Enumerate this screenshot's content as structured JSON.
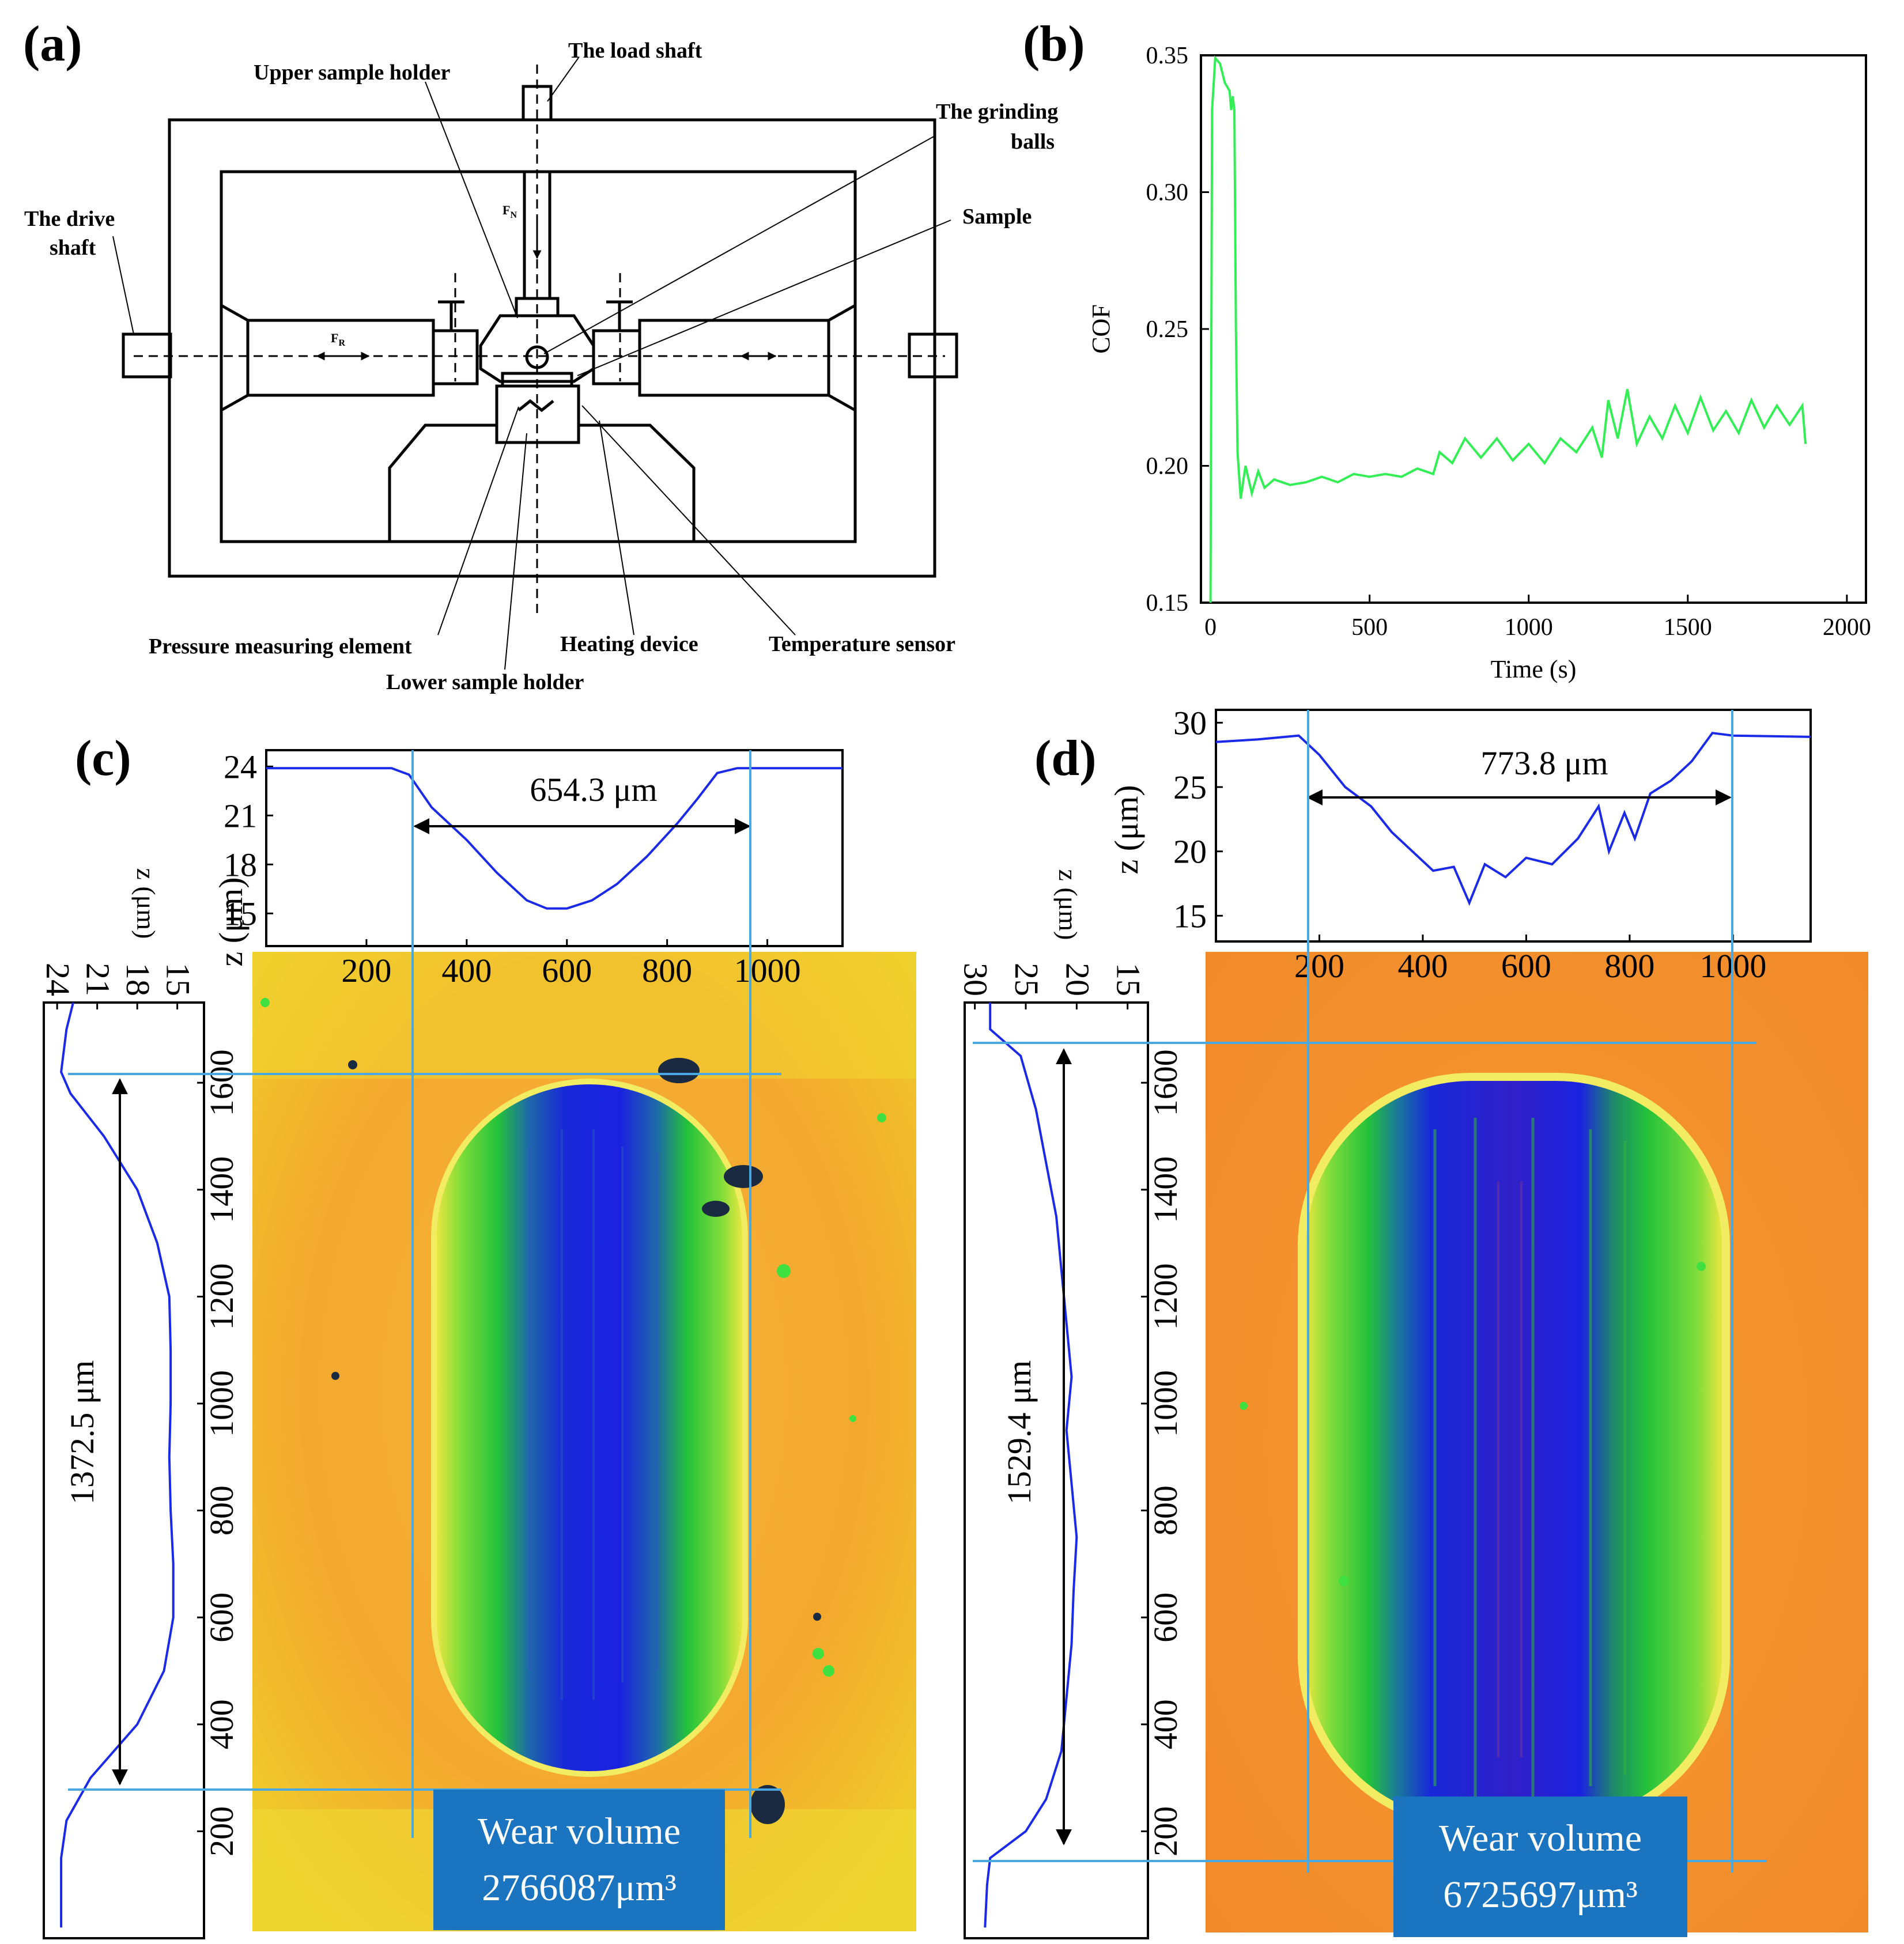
{
  "panels": {
    "a": "(a)",
    "b": "(b)",
    "c": "(c)",
    "d": "(d)"
  },
  "diagram": {
    "labels": {
      "load_shaft": "The load shaft",
      "upper_holder": "Upper sample holder",
      "grinding_balls_1": "The grinding",
      "grinding_balls_2": "balls",
      "drive_shaft_1": "The drive",
      "drive_shaft_2": "shaft",
      "sample": "Sample",
      "pressure": "Pressure measuring element",
      "heating": "Heating device",
      "temp_sensor": "Temperature sensor",
      "lower_holder": "Lower sample holder",
      "fn": "F",
      "fn_sub": "N",
      "fr": "F",
      "fr_sub": "R"
    }
  },
  "chart_data": [
    {
      "type": "line",
      "panel": "(b)",
      "xlabel": "Time (s)",
      "ylabel": "COF",
      "xlim": [
        -30,
        2060
      ],
      "ylim": [
        0.15,
        0.35
      ],
      "xticks": [
        0,
        500,
        1000,
        1500,
        2000
      ],
      "yticks": [
        0.15,
        0.2,
        0.25,
        0.3,
        0.35
      ],
      "ytick_labels": [
        "0.15",
        "0.20",
        "0.25",
        "0.30",
        "0.35"
      ],
      "color": "#33ee55",
      "series": [
        {
          "name": "COF",
          "points": [
            [
              0,
              0.15
            ],
            [
              5,
              0.33
            ],
            [
              15,
              0.349
            ],
            [
              30,
              0.347
            ],
            [
              45,
              0.34
            ],
            [
              60,
              0.337
            ],
            [
              65,
              0.33
            ],
            [
              70,
              0.335
            ],
            [
              75,
              0.33
            ],
            [
              80,
              0.25
            ],
            [
              85,
              0.205
            ],
            [
              95,
              0.188
            ],
            [
              110,
              0.2
            ],
            [
              130,
              0.19
            ],
            [
              150,
              0.198
            ],
            [
              170,
              0.192
            ],
            [
              200,
              0.195
            ],
            [
              250,
              0.193
            ],
            [
              300,
              0.194
            ],
            [
              350,
              0.196
            ],
            [
              400,
              0.194
            ],
            [
              450,
              0.197
            ],
            [
              500,
              0.196
            ],
            [
              550,
              0.197
            ],
            [
              600,
              0.196
            ],
            [
              650,
              0.199
            ],
            [
              700,
              0.197
            ],
            [
              720,
              0.205
            ],
            [
              760,
              0.201
            ],
            [
              800,
              0.21
            ],
            [
              850,
              0.203
            ],
            [
              900,
              0.21
            ],
            [
              950,
              0.202
            ],
            [
              1000,
              0.208
            ],
            [
              1050,
              0.201
            ],
            [
              1100,
              0.21
            ],
            [
              1150,
              0.205
            ],
            [
              1200,
              0.214
            ],
            [
              1230,
              0.203
            ],
            [
              1250,
              0.224
            ],
            [
              1280,
              0.21
            ],
            [
              1310,
              0.228
            ],
            [
              1340,
              0.208
            ],
            [
              1380,
              0.218
            ],
            [
              1420,
              0.21
            ],
            [
              1460,
              0.222
            ],
            [
              1500,
              0.212
            ],
            [
              1540,
              0.225
            ],
            [
              1580,
              0.213
            ],
            [
              1620,
              0.22
            ],
            [
              1660,
              0.212
            ],
            [
              1700,
              0.224
            ],
            [
              1740,
              0.214
            ],
            [
              1780,
              0.222
            ],
            [
              1820,
              0.215
            ],
            [
              1860,
              0.222
            ],
            [
              1870,
              0.208
            ]
          ]
        }
      ]
    },
    {
      "type": "line",
      "panel": "(c) horizontal profile",
      "ylabel": "z (μm)",
      "xlim": [
        0,
        1150
      ],
      "ylim": [
        13,
        25
      ],
      "xticks": [
        200,
        400,
        600,
        800,
        1000
      ],
      "yticks": [
        15,
        18,
        21,
        24
      ],
      "annotation": "654.3 μm",
      "series": [
        {
          "name": "profile",
          "points": [
            [
              0,
              23.9
            ],
            [
              100,
              23.9
            ],
            [
              250,
              23.9
            ],
            [
              285,
              23.5
            ],
            [
              330,
              21.5
            ],
            [
              400,
              19.5
            ],
            [
              460,
              17.5
            ],
            [
              520,
              15.8
            ],
            [
              560,
              15.3
            ],
            [
              600,
              15.3
            ],
            [
              650,
              15.8
            ],
            [
              700,
              16.8
            ],
            [
              760,
              18.5
            ],
            [
              820,
              20.5
            ],
            [
              860,
              22.0
            ],
            [
              900,
              23.6
            ],
            [
              940,
              23.9
            ],
            [
              1150,
              23.9
            ]
          ]
        }
      ]
    },
    {
      "type": "line",
      "panel": "(d) horizontal profile",
      "ylabel": "z (μm)",
      "xlim": [
        0,
        1150
      ],
      "ylim": [
        13,
        31
      ],
      "xticks": [
        200,
        400,
        600,
        800,
        1000
      ],
      "yticks": [
        15,
        20,
        25,
        30
      ],
      "annotation": "773.8 μm",
      "series": [
        {
          "name": "profile",
          "points": [
            [
              0,
              28.5
            ],
            [
              80,
              28.7
            ],
            [
              160,
              29.0
            ],
            [
              200,
              27.5
            ],
            [
              250,
              25.0
            ],
            [
              300,
              23.5
            ],
            [
              340,
              21.5
            ],
            [
              380,
              20.0
            ],
            [
              420,
              18.5
            ],
            [
              460,
              18.8
            ],
            [
              490,
              16.0
            ],
            [
              520,
              19.0
            ],
            [
              560,
              18.0
            ],
            [
              600,
              19.5
            ],
            [
              650,
              19.0
            ],
            [
              700,
              21.0
            ],
            [
              740,
              23.5
            ],
            [
              760,
              20.0
            ],
            [
              790,
              23.0
            ],
            [
              810,
              21.0
            ],
            [
              840,
              24.5
            ],
            [
              880,
              25.5
            ],
            [
              920,
              27.0
            ],
            [
              960,
              29.2
            ],
            [
              1000,
              29.0
            ],
            [
              1150,
              28.9
            ]
          ]
        }
      ]
    },
    {
      "type": "line",
      "panel": "(c) vertical profile",
      "ylabel": "z (μm)",
      "xlim": [
        0,
        1750
      ],
      "zlim": [
        13,
        25
      ],
      "yticks_pos": [
        200,
        400,
        600,
        800,
        1000,
        1200,
        1400,
        1600
      ],
      "zticks": [
        15,
        18,
        21,
        24
      ],
      "annotation": "1372.5 μm",
      "series": [
        {
          "name": "profile",
          "points": [
            [
              20,
              23.7
            ],
            [
              150,
              23.7
            ],
            [
              220,
              23.3
            ],
            [
              300,
              21.5
            ],
            [
              400,
              18.0
            ],
            [
              500,
              16.0
            ],
            [
              600,
              15.3
            ],
            [
              700,
              15.3
            ],
            [
              800,
              15.5
            ],
            [
              900,
              15.6
            ],
            [
              1000,
              15.5
            ],
            [
              1100,
              15.5
            ],
            [
              1200,
              15.6
            ],
            [
              1300,
              16.5
            ],
            [
              1400,
              18.0
            ],
            [
              1500,
              20.5
            ],
            [
              1580,
              23.0
            ],
            [
              1620,
              23.7
            ],
            [
              1700,
              23.3
            ],
            [
              1750,
              22.8
            ]
          ]
        }
      ]
    },
    {
      "type": "line",
      "panel": "(d) vertical profile",
      "ylabel": "z (μm)",
      "xlim": [
        0,
        1750
      ],
      "zlim": [
        13,
        31
      ],
      "yticks_pos": [
        200,
        400,
        600,
        800,
        1000,
        1200,
        1400,
        1600
      ],
      "zticks": [
        15,
        20,
        25,
        30
      ],
      "annotation": "1529.4 μm",
      "series": [
        {
          "name": "profile",
          "points": [
            [
              20,
              29.0
            ],
            [
              100,
              28.8
            ],
            [
              150,
              28.5
            ],
            [
              200,
              25.0
            ],
            [
              260,
              23.0
            ],
            [
              350,
              21.5
            ],
            [
              450,
              21.0
            ],
            [
              550,
              20.5
            ],
            [
              650,
              20.3
            ],
            [
              750,
              20.0
            ],
            [
              850,
              20.5
            ],
            [
              950,
              21.0
            ],
            [
              1050,
              20.5
            ],
            [
              1150,
              21.0
            ],
            [
              1250,
              21.5
            ],
            [
              1350,
              22.0
            ],
            [
              1450,
              23.0
            ],
            [
              1550,
              24.0
            ],
            [
              1650,
              25.5
            ],
            [
              1700,
              28.5
            ],
            [
              1750,
              28.5
            ]
          ]
        }
      ]
    }
  ],
  "wear": {
    "c": {
      "line1": "Wear volume",
      "line2": "2766087μm³"
    },
    "d": {
      "line1": "Wear volume",
      "line2": "6725697μm³"
    }
  }
}
